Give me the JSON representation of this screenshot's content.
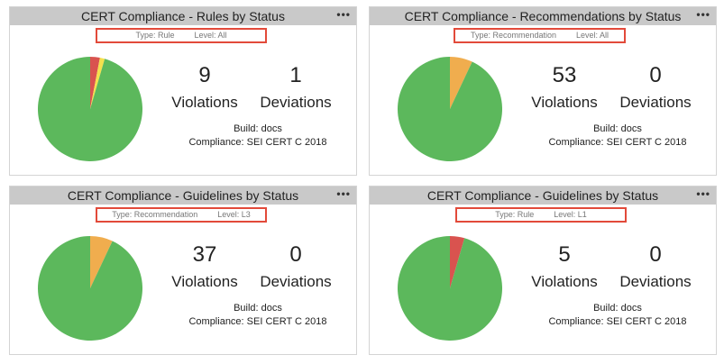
{
  "colors": {
    "compliant": "#5cb85c",
    "violation": "#d9534f",
    "deviation": "#f0ad4e",
    "warn": "#f4e04d",
    "filter_border": "#e24a3a"
  },
  "widgets": [
    {
      "title": "CERT Compliance - Rules by Status",
      "filter_type": "Type: Rule",
      "filter_level": "Level: All",
      "violations_count": "9",
      "violations_label": "Violations",
      "deviations_count": "1",
      "deviations_label": "Deviations",
      "build": "Build: docs",
      "compliance": "Compliance: SEI CERT C 2018",
      "pie": [
        {
          "color": "compliant",
          "fraction": 0.955
        },
        {
          "color": "violation",
          "fraction": 0.03
        },
        {
          "color": "warn",
          "fraction": 0.015
        }
      ]
    },
    {
      "title": "CERT Compliance - Recommendations by Status",
      "filter_type": "Type: Recommendation",
      "filter_level": "Level: All",
      "violations_count": "53",
      "violations_label": "Violations",
      "deviations_count": "0",
      "deviations_label": "Deviations",
      "build": "Build: docs",
      "compliance": "Compliance: SEI CERT C 2018",
      "pie": [
        {
          "color": "compliant",
          "fraction": 0.93
        },
        {
          "color": "deviation",
          "fraction": 0.07
        }
      ]
    },
    {
      "title": "CERT Compliance - Guidelines by Status",
      "filter_type": "Type: Recommendation",
      "filter_level": "Level: L3",
      "violations_count": "37",
      "violations_label": "Violations",
      "deviations_count": "0",
      "deviations_label": "Deviations",
      "build": "Build: docs",
      "compliance": "Compliance: SEI CERT C 2018",
      "pie": [
        {
          "color": "compliant",
          "fraction": 0.93
        },
        {
          "color": "deviation",
          "fraction": 0.07
        }
      ]
    },
    {
      "title": "CERT Compliance - Guidelines by Status",
      "filter_type": "Type: Rule",
      "filter_level": "Level: L1",
      "violations_count": "5",
      "violations_label": "Violations",
      "deviations_count": "0",
      "deviations_label": "Deviations",
      "build": "Build: docs",
      "compliance": "Compliance: SEI CERT C 2018",
      "pie": [
        {
          "color": "compliant",
          "fraction": 0.955
        },
        {
          "color": "violation",
          "fraction": 0.045
        }
      ]
    }
  ],
  "menu_glyph": "•••"
}
